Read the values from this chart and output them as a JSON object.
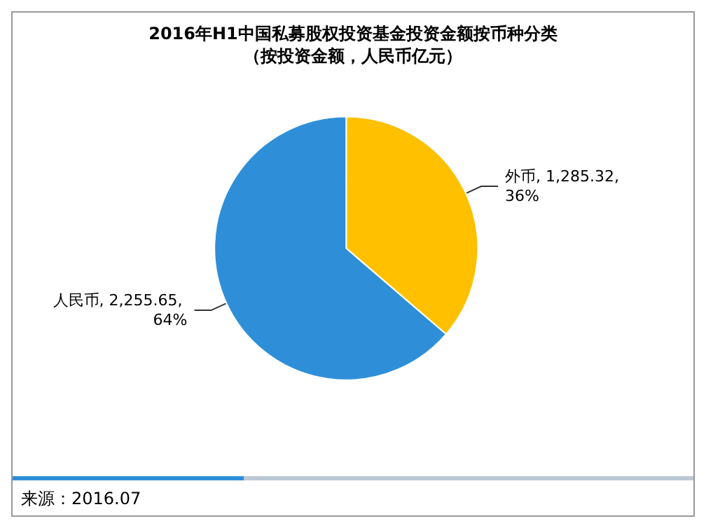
{
  "chart_data": {
    "type": "pie",
    "title": "2016年H1中国私募股权投资基金投资金额按币种分类",
    "subtitle": "（按投资金额，人民币亿元）",
    "categories": [
      "外币",
      "人民币"
    ],
    "values": [
      1285.32,
      2255.65
    ],
    "colors": [
      "#ffc000",
      "#2e8fd8"
    ],
    "value_labels": [
      ", 1,285.32, 36%",
      ", 2,255.65, 64%"
    ],
    "legend": false,
    "annotations": [
      "来源：2016.07"
    ]
  }
}
